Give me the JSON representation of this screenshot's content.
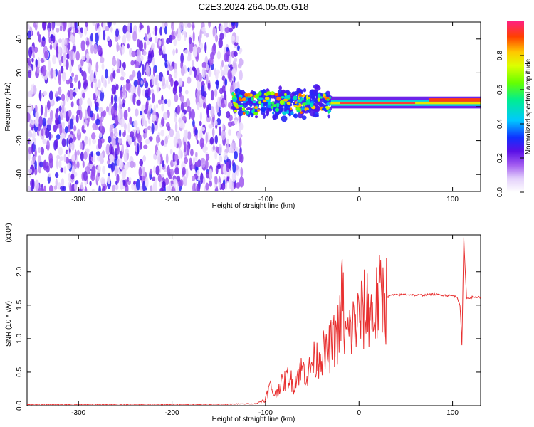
{
  "title": "C2E3.2024.264.05.05.G18",
  "chart_data": [
    {
      "type": "heatmap",
      "xlabel": "Height of straight line (km)",
      "ylabel": "Frequency (Hz)",
      "xlim": [
        -355,
        130
      ],
      "ylim": [
        -50,
        50
      ],
      "xticks": [
        -300,
        -200,
        -100,
        0,
        100
      ],
      "yticks": [
        -40,
        -20,
        0,
        20,
        40
      ],
      "colorbar": {
        "label": "Normalized spectral amplitude",
        "range": [
          0.0,
          1.0
        ],
        "ticks": [
          0.0,
          0.2,
          0.4,
          0.6,
          0.8
        ],
        "colormap": "rainbow"
      },
      "regions": [
        {
          "x": [
            -355,
            -125
          ],
          "freq_spread": [
            -50,
            50
          ],
          "amplitude": [
            0.05,
            0.3
          ],
          "description": "noise"
        },
        {
          "x": [
            -135,
            -30
          ],
          "freq_center": 2,
          "freq_spread": [
            -10,
            10
          ],
          "amplitude": [
            0.3,
            0.9
          ]
        },
        {
          "x": [
            -30,
            130
          ],
          "freq_center": 2,
          "freq_spread": [
            -2,
            4
          ],
          "amplitude": [
            0.6,
            1.0
          ]
        }
      ],
      "grid": false
    },
    {
      "type": "line",
      "xlabel": "Height of straight line (km)",
      "ylabel": "SNR (10 * v/v)",
      "scale_note": "(x10⁴)",
      "xlim": [
        -355,
        130
      ],
      "ylim": [
        0,
        2.55
      ],
      "xticks": [
        -300,
        -200,
        -100,
        0,
        100
      ],
      "yticks": [
        0.0,
        0.5,
        1.0,
        1.5,
        2.0
      ],
      "series": [
        {
          "color": "#e83030",
          "x": [
            -355,
            -300,
            -250,
            -200,
            -150,
            -110,
            -100,
            -95,
            -90,
            -85,
            -80,
            -75,
            -70,
            -65,
            -60,
            -55,
            -50,
            -45,
            -40,
            -35,
            -30,
            -25,
            -20,
            -18,
            -15,
            -10,
            -5,
            0,
            5,
            10,
            15,
            20,
            25,
            30,
            35,
            40,
            50,
            60,
            70,
            80,
            90,
            100,
            105,
            108,
            110,
            112,
            115,
            120,
            130
          ],
          "y": [
            0.02,
            0.02,
            0.02,
            0.02,
            0.02,
            0.03,
            0.1,
            0.3,
            0.15,
            0.3,
            0.35,
            0.45,
            0.3,
            0.5,
            0.55,
            0.45,
            0.65,
            0.7,
            0.8,
            0.75,
            0.9,
            1.0,
            1.2,
            1.75,
            1.0,
            1.1,
            1.2,
            1.3,
            1.4,
            1.5,
            1.3,
            1.55,
            1.6,
            1.62,
            1.65,
            1.65,
            1.66,
            1.65,
            1.65,
            1.66,
            1.65,
            1.64,
            1.62,
            1.5,
            0.9,
            2.5,
            1.6,
            1.62,
            1.62
          ]
        }
      ],
      "grid": false
    }
  ]
}
